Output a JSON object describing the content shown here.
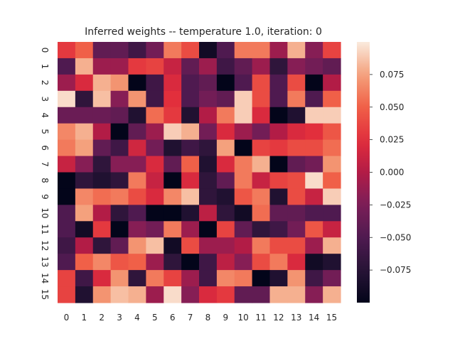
{
  "chart_data": {
    "type": "heatmap",
    "title": "Inferred weights -- temperature 1.0, iteration: 0",
    "xlabel": "",
    "ylabel": "",
    "x_ticks": [
      "0",
      "1",
      "2",
      "3",
      "4",
      "5",
      "6",
      "7",
      "8",
      "9",
      "10",
      "11",
      "12",
      "13",
      "14",
      "15"
    ],
    "y_ticks": [
      "0",
      "1",
      "2",
      "3",
      "4",
      "5",
      "6",
      "7",
      "8",
      "9",
      "10",
      "11",
      "12",
      "13",
      "14",
      "15"
    ],
    "colormap": "rocket",
    "vmin": -0.1,
    "vmax": 0.1,
    "colorbar_ticks": [
      "0.075",
      "0.050",
      "0.025",
      "0.000",
      "−0.025",
      "−0.050",
      "−0.075"
    ],
    "colorbar_tick_values": [
      0.075,
      0.05,
      0.025,
      0.0,
      -0.025,
      -0.05,
      -0.075
    ],
    "values": [
      [
        0.03,
        0.05,
        -0.04,
        -0.04,
        -0.06,
        -0.03,
        0.06,
        0.04,
        -0.09,
        -0.05,
        0.06,
        0.06,
        -0.01,
        0.08,
        -0.02,
        0.035
      ],
      [
        -0.05,
        0.08,
        -0.01,
        -0.01,
        0.03,
        0.035,
        0.01,
        -0.04,
        -0.01,
        -0.06,
        -0.04,
        -0.01,
        -0.07,
        -0.02,
        -0.03,
        -0.04
      ],
      [
        -0.01,
        0.02,
        0.08,
        0.07,
        -0.1,
        -0.06,
        0.02,
        -0.05,
        -0.04,
        -0.1,
        -0.05,
        0.04,
        -0.05,
        0.04,
        -0.1,
        0.0
      ],
      [
        0.095,
        -0.07,
        0.085,
        -0.02,
        0.07,
        -0.06,
        0.025,
        -0.05,
        -0.03,
        -0.04,
        0.09,
        0.04,
        -0.05,
        0.06,
        -0.05,
        0.05
      ],
      [
        -0.035,
        -0.035,
        -0.035,
        -0.04,
        -0.08,
        0.055,
        0.03,
        -0.08,
        0.0,
        0.06,
        0.09,
        0.02,
        -0.1,
        -0.08,
        0.09,
        0.09
      ],
      [
        0.065,
        0.08,
        0.0,
        -0.1,
        -0.04,
        -0.01,
        0.09,
        0.08,
        -0.03,
        0.02,
        -0.01,
        -0.03,
        0.0,
        0.02,
        0.025,
        0.045
      ],
      [
        0.06,
        0.075,
        -0.04,
        -0.06,
        0.015,
        -0.03,
        -0.08,
        -0.06,
        -0.07,
        0.075,
        -0.1,
        0.035,
        0.03,
        0.04,
        0.04,
        0.055
      ],
      [
        0.01,
        -0.02,
        -0.07,
        -0.02,
        -0.02,
        0.02,
        -0.04,
        0.05,
        -0.08,
        0.02,
        0.06,
        0.08,
        -0.1,
        -0.04,
        -0.03,
        0.07
      ],
      [
        -0.1,
        -0.07,
        -0.08,
        -0.07,
        0.06,
        0.01,
        -0.1,
        0.02,
        -0.07,
        -0.04,
        0.06,
        0.01,
        0.035,
        0.04,
        0.095,
        0.05
      ],
      [
        -0.1,
        0.065,
        0.055,
        0.06,
        0.04,
        0.02,
        0.065,
        0.085,
        -0.07,
        -0.08,
        0.045,
        0.06,
        -0.08,
        0.04,
        0.01,
        0.09
      ],
      [
        -0.05,
        0.075,
        0.0,
        -0.07,
        -0.05,
        -0.1,
        -0.1,
        -0.08,
        0.005,
        -0.07,
        -0.09,
        0.055,
        -0.04,
        -0.04,
        -0.05,
        -0.05
      ],
      [
        -0.05,
        -0.09,
        0.03,
        -0.1,
        -0.02,
        -0.03,
        0.06,
        -0.01,
        -0.1,
        0.035,
        -0.04,
        -0.07,
        -0.06,
        -0.03,
        0.045,
        0.01
      ],
      [
        -0.06,
        0.0,
        -0.07,
        -0.04,
        0.07,
        0.085,
        -0.09,
        0.04,
        -0.01,
        -0.01,
        0.0,
        0.06,
        0.04,
        0.04,
        -0.01,
        0.08
      ],
      [
        -0.05,
        0.05,
        0.065,
        0.045,
        0.05,
        -0.01,
        -0.07,
        -0.1,
        -0.06,
        0.005,
        -0.02,
        0.04,
        0.06,
        0.02,
        -0.09,
        -0.08
      ],
      [
        0.035,
        -0.06,
        0.02,
        0.07,
        -0.07,
        0.06,
        0.035,
        -0.01,
        -0.06,
        0.065,
        0.06,
        -0.1,
        -0.08,
        0.07,
        -0.06,
        -0.03
      ],
      [
        0.035,
        -0.08,
        0.07,
        0.085,
        0.08,
        -0.01,
        0.095,
        -0.02,
        0.02,
        0.03,
        -0.04,
        -0.04,
        0.08,
        0.08,
        -0.02,
        0.08
      ]
    ]
  }
}
